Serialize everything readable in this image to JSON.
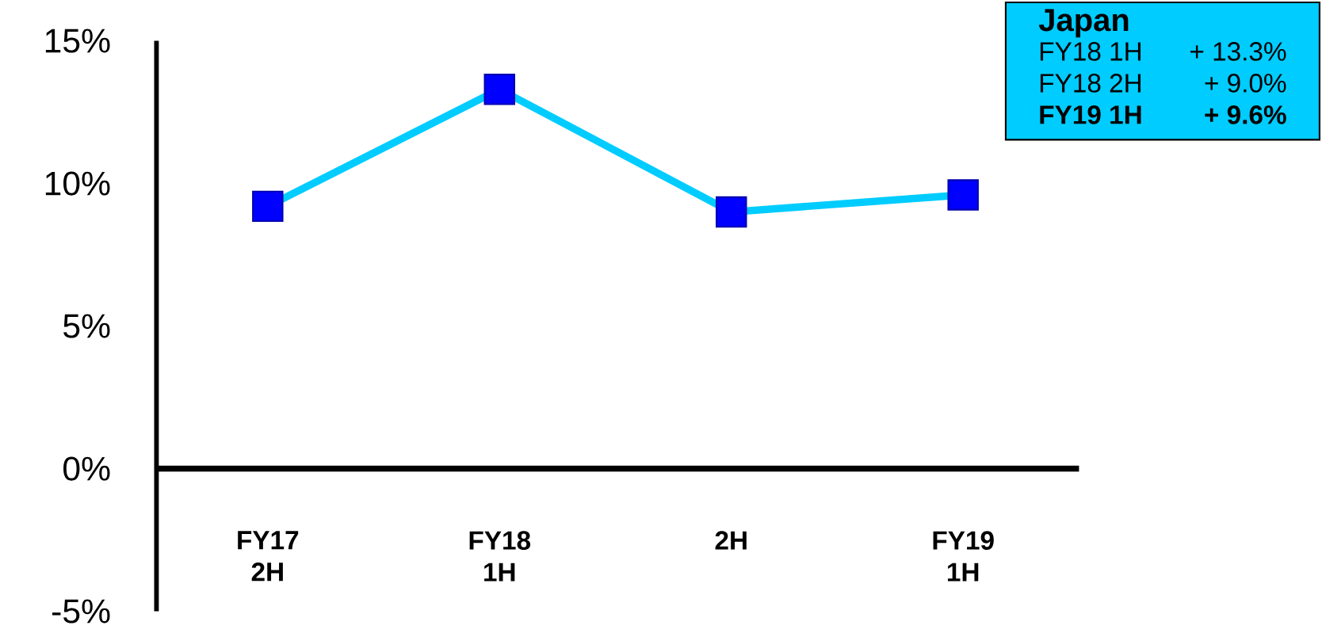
{
  "chart_data": {
    "type": "line",
    "categories": [
      "FY17 2H",
      "FY18 1H",
      "2H",
      "FY19 1H"
    ],
    "series": [
      {
        "color": "#00ccff",
        "colors": [
          "#0000ff",
          "#0000ff",
          "#0000ff",
          "#0000ff"
        ],
        "values": [
          9.2,
          13.3,
          9.0,
          9.6
        ]
      }
    ],
    "ylim": [
      -5,
      15
    ],
    "yticks": [
      {
        "value": -5,
        "label": "-5%"
      },
      {
        "value": 0,
        "label": "0%"
      },
      {
        "value": 5,
        "label": "5%"
      },
      {
        "value": 10,
        "label": "10%"
      },
      {
        "value": 15,
        "label": "15%"
      }
    ],
    "marker": "square",
    "line_style": "solid",
    "grid": false,
    "annotations": [
      "Japan",
      "FY18 1H",
      "+ 13.3%",
      "FY18 2H",
      "+ 9.0%",
      "FY19 1H",
      "+ 9.6%"
    ]
  }
}
